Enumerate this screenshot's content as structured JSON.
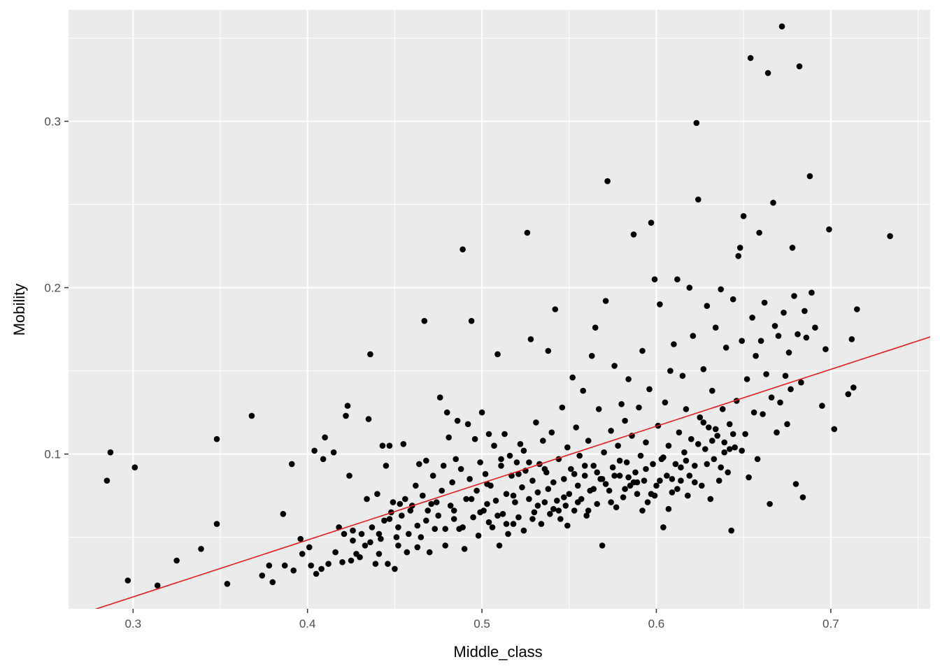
{
  "chart_data": {
    "type": "scatter",
    "xlabel": "Middle_class",
    "ylabel": "Mobility",
    "xlim": [
      0.263,
      0.757
    ],
    "ylim": [
      0.007,
      0.367
    ],
    "x_ticks": [
      0.3,
      0.4,
      0.5,
      0.6,
      0.7
    ],
    "x_tick_labels": [
      "0.3",
      "0.4",
      "0.5",
      "0.6",
      "0.7"
    ],
    "y_ticks": [
      0.1,
      0.2,
      0.3
    ],
    "y_tick_labels": [
      "0.1",
      "0.2",
      "0.3"
    ],
    "grid": true,
    "panel_background": "#EBEBEB",
    "grid_color": "#FFFFFF",
    "point_color": "#000000",
    "fit_line": {
      "color": "#E31A1C",
      "x": [
        0.263,
        0.757
      ],
      "y": [
        0.0015,
        0.1704
      ]
    },
    "points": [
      [
        0.285,
        0.084
      ],
      [
        0.287,
        0.101
      ],
      [
        0.297,
        0.024
      ],
      [
        0.301,
        0.092
      ],
      [
        0.314,
        0.021
      ],
      [
        0.325,
        0.036
      ],
      [
        0.339,
        0.043
      ],
      [
        0.348,
        0.058
      ],
      [
        0.348,
        0.109
      ],
      [
        0.354,
        0.022
      ],
      [
        0.368,
        0.123
      ],
      [
        0.374,
        0.027
      ],
      [
        0.378,
        0.033
      ],
      [
        0.38,
        0.023
      ],
      [
        0.386,
        0.064
      ],
      [
        0.387,
        0.033
      ],
      [
        0.391,
        0.094
      ],
      [
        0.392,
        0.03
      ],
      [
        0.396,
        0.049
      ],
      [
        0.397,
        0.04
      ],
      [
        0.401,
        0.044
      ],
      [
        0.402,
        0.033
      ],
      [
        0.404,
        0.102
      ],
      [
        0.405,
        0.028
      ],
      [
        0.408,
        0.031
      ],
      [
        0.409,
        0.097
      ],
      [
        0.41,
        0.11
      ],
      [
        0.412,
        0.034
      ],
      [
        0.415,
        0.101
      ],
      [
        0.416,
        0.041
      ],
      [
        0.418,
        0.056
      ],
      [
        0.42,
        0.035
      ],
      [
        0.421,
        0.052
      ],
      [
        0.422,
        0.123
      ],
      [
        0.423,
        0.129
      ],
      [
        0.424,
        0.087
      ],
      [
        0.425,
        0.036
      ],
      [
        0.426,
        0.048
      ],
      [
        0.428,
        0.04
      ],
      [
        0.43,
        0.038
      ],
      [
        0.433,
        0.045
      ],
      [
        0.434,
        0.073
      ],
      [
        0.435,
        0.121
      ],
      [
        0.436,
        0.16
      ],
      [
        0.437,
        0.056
      ],
      [
        0.439,
        0.034
      ],
      [
        0.44,
        0.076
      ],
      [
        0.441,
        0.04
      ],
      [
        0.442,
        0.049
      ],
      [
        0.443,
        0.105
      ],
      [
        0.444,
        0.06
      ],
      [
        0.445,
        0.093
      ],
      [
        0.446,
        0.034
      ],
      [
        0.447,
        0.105
      ],
      [
        0.448,
        0.065
      ],
      [
        0.449,
        0.071
      ],
      [
        0.45,
        0.031
      ],
      [
        0.451,
        0.05
      ],
      [
        0.452,
        0.045
      ],
      [
        0.453,
        0.07
      ],
      [
        0.454,
        0.063
      ],
      [
        0.455,
        0.106
      ],
      [
        0.456,
        0.073
      ],
      [
        0.457,
        0.041
      ],
      [
        0.459,
        0.066
      ],
      [
        0.46,
        0.069
      ],
      [
        0.462,
        0.081
      ],
      [
        0.463,
        0.057
      ],
      [
        0.464,
        0.094
      ],
      [
        0.465,
        0.05
      ],
      [
        0.466,
        0.075
      ],
      [
        0.467,
        0.18
      ],
      [
        0.468,
        0.096
      ],
      [
        0.469,
        0.066
      ],
      [
        0.47,
        0.041
      ],
      [
        0.471,
        0.07
      ],
      [
        0.472,
        0.087
      ],
      [
        0.473,
        0.055
      ],
      [
        0.475,
        0.063
      ],
      [
        0.476,
        0.134
      ],
      [
        0.477,
        0.078
      ],
      [
        0.478,
        0.093
      ],
      [
        0.479,
        0.045
      ],
      [
        0.48,
        0.125
      ],
      [
        0.481,
        0.11
      ],
      [
        0.482,
        0.069
      ],
      [
        0.483,
        0.083
      ],
      [
        0.484,
        0.061
      ],
      [
        0.485,
        0.097
      ],
      [
        0.486,
        0.12
      ],
      [
        0.487,
        0.055
      ],
      [
        0.488,
        0.091
      ],
      [
        0.489,
        0.223
      ],
      [
        0.49,
        0.043
      ],
      [
        0.491,
        0.073
      ],
      [
        0.492,
        0.118
      ],
      [
        0.493,
        0.085
      ],
      [
        0.494,
        0.18
      ],
      [
        0.495,
        0.062
      ],
      [
        0.496,
        0.109
      ],
      [
        0.497,
        0.078
      ],
      [
        0.498,
        0.051
      ],
      [
        0.499,
        0.095
      ],
      [
        0.5,
        0.125
      ],
      [
        0.501,
        0.066
      ],
      [
        0.502,
        0.088
      ],
      [
        0.503,
        0.07
      ],
      [
        0.504,
        0.112
      ],
      [
        0.505,
        0.081
      ],
      [
        0.506,
        0.056
      ],
      [
        0.507,
        0.105
      ],
      [
        0.508,
        0.072
      ],
      [
        0.509,
        0.16
      ],
      [
        0.51,
        0.045
      ],
      [
        0.511,
        0.093
      ],
      [
        0.512,
        0.064
      ],
      [
        0.513,
        0.112
      ],
      [
        0.514,
        0.076
      ],
      [
        0.515,
        0.052
      ],
      [
        0.516,
        0.099
      ],
      [
        0.517,
        0.087
      ],
      [
        0.518,
        0.058
      ],
      [
        0.519,
        0.071
      ],
      [
        0.52,
        0.095
      ],
      [
        0.521,
        0.062
      ],
      [
        0.522,
        0.106
      ],
      [
        0.523,
        0.08
      ],
      [
        0.524,
        0.054
      ],
      [
        0.525,
        0.09
      ],
      [
        0.526,
        0.233
      ],
      [
        0.527,
        0.073
      ],
      [
        0.528,
        0.169
      ],
      [
        0.529,
        0.084
      ],
      [
        0.53,
        0.065
      ],
      [
        0.531,
        0.119
      ],
      [
        0.532,
        0.077
      ],
      [
        0.533,
        0.094
      ],
      [
        0.534,
        0.058
      ],
      [
        0.535,
        0.108
      ],
      [
        0.536,
        0.071
      ],
      [
        0.537,
        0.089
      ],
      [
        0.538,
        0.162
      ],
      [
        0.539,
        0.064
      ],
      [
        0.54,
        0.113
      ],
      [
        0.541,
        0.083
      ],
      [
        0.542,
        0.187
      ],
      [
        0.543,
        0.072
      ],
      [
        0.544,
        0.097
      ],
      [
        0.545,
        0.061
      ],
      [
        0.546,
        0.128
      ],
      [
        0.547,
        0.085
      ],
      [
        0.548,
        0.069
      ],
      [
        0.549,
        0.104
      ],
      [
        0.55,
        0.076
      ],
      [
        0.551,
        0.091
      ],
      [
        0.552,
        0.146
      ],
      [
        0.553,
        0.066
      ],
      [
        0.554,
        0.116
      ],
      [
        0.555,
        0.081
      ],
      [
        0.556,
        0.099
      ],
      [
        0.557,
        0.073
      ],
      [
        0.558,
        0.138
      ],
      [
        0.559,
        0.087
      ],
      [
        0.56,
        0.063
      ],
      [
        0.561,
        0.108
      ],
      [
        0.562,
        0.078
      ],
      [
        0.563,
        0.159
      ],
      [
        0.564,
        0.093
      ],
      [
        0.565,
        0.176
      ],
      [
        0.566,
        0.07
      ],
      [
        0.567,
        0.127
      ],
      [
        0.568,
        0.085
      ],
      [
        0.569,
        0.045
      ],
      [
        0.57,
        0.101
      ],
      [
        0.571,
        0.192
      ],
      [
        0.572,
        0.264
      ],
      [
        0.573,
        0.078
      ],
      [
        0.574,
        0.114
      ],
      [
        0.575,
        0.092
      ],
      [
        0.576,
        0.153
      ],
      [
        0.577,
        0.068
      ],
      [
        0.578,
        0.105
      ],
      [
        0.579,
        0.087
      ],
      [
        0.58,
        0.13
      ],
      [
        0.581,
        0.074
      ],
      [
        0.582,
        0.12
      ],
      [
        0.583,
        0.095
      ],
      [
        0.584,
        0.145
      ],
      [
        0.585,
        0.081
      ],
      [
        0.586,
        0.111
      ],
      [
        0.587,
        0.232
      ],
      [
        0.588,
        0.089
      ],
      [
        0.589,
        0.076
      ],
      [
        0.59,
        0.128
      ],
      [
        0.591,
        0.099
      ],
      [
        0.592,
        0.162
      ],
      [
        0.593,
        0.084
      ],
      [
        0.594,
        0.107
      ],
      [
        0.595,
        0.071
      ],
      [
        0.596,
        0.139
      ],
      [
        0.597,
        0.239
      ],
      [
        0.598,
        0.094
      ],
      [
        0.599,
        0.205
      ],
      [
        0.6,
        0.081
      ],
      [
        0.601,
        0.117
      ],
      [
        0.602,
        0.19
      ],
      [
        0.603,
        0.097
      ],
      [
        0.604,
        0.056
      ],
      [
        0.605,
        0.131
      ],
      [
        0.606,
        0.087
      ],
      [
        0.607,
        0.105
      ],
      [
        0.608,
        0.15
      ],
      [
        0.609,
        0.077
      ],
      [
        0.61,
        0.166
      ],
      [
        0.611,
        0.094
      ],
      [
        0.612,
        0.205
      ],
      [
        0.613,
        0.113
      ],
      [
        0.614,
        0.084
      ],
      [
        0.615,
        0.147
      ],
      [
        0.616,
        0.101
      ],
      [
        0.617,
        0.127
      ],
      [
        0.618,
        0.075
      ],
      [
        0.619,
        0.2
      ],
      [
        0.62,
        0.109
      ],
      [
        0.621,
        0.171
      ],
      [
        0.622,
        0.093
      ],
      [
        0.623,
        0.299
      ],
      [
        0.624,
        0.253
      ],
      [
        0.625,
        0.122
      ],
      [
        0.626,
        0.081
      ],
      [
        0.627,
        0.151
      ],
      [
        0.628,
        0.103
      ],
      [
        0.629,
        0.189
      ],
      [
        0.63,
        0.116
      ],
      [
        0.631,
        0.073
      ],
      [
        0.632,
        0.138
      ],
      [
        0.633,
        0.097
      ],
      [
        0.634,
        0.176
      ],
      [
        0.635,
        0.111
      ],
      [
        0.636,
        0.084
      ],
      [
        0.637,
        0.199
      ],
      [
        0.638,
        0.127
      ],
      [
        0.639,
        0.101
      ],
      [
        0.64,
        0.164
      ],
      [
        0.641,
        0.089
      ],
      [
        0.642,
        0.118
      ],
      [
        0.643,
        0.054
      ],
      [
        0.644,
        0.193
      ],
      [
        0.645,
        0.104
      ],
      [
        0.646,
        0.132
      ],
      [
        0.647,
        0.219
      ],
      [
        0.648,
        0.224
      ],
      [
        0.649,
        0.168
      ],
      [
        0.65,
        0.243
      ],
      [
        0.651,
        0.112
      ],
      [
        0.652,
        0.145
      ],
      [
        0.653,
        0.086
      ],
      [
        0.654,
        0.338
      ],
      [
        0.655,
        0.182
      ],
      [
        0.656,
        0.125
      ],
      [
        0.657,
        0.159
      ],
      [
        0.658,
        0.097
      ],
      [
        0.659,
        0.233
      ],
      [
        0.66,
        0.168
      ],
      [
        0.661,
        0.124
      ],
      [
        0.662,
        0.191
      ],
      [
        0.663,
        0.148
      ],
      [
        0.664,
        0.329
      ],
      [
        0.665,
        0.07
      ],
      [
        0.666,
        0.134
      ],
      [
        0.667,
        0.251
      ],
      [
        0.668,
        0.177
      ],
      [
        0.669,
        0.113
      ],
      [
        0.67,
        0.171
      ],
      [
        0.671,
        0.131
      ],
      [
        0.672,
        0.357
      ],
      [
        0.673,
        0.185
      ],
      [
        0.674,
        0.147
      ],
      [
        0.675,
        0.118
      ],
      [
        0.676,
        0.161
      ],
      [
        0.677,
        0.139
      ],
      [
        0.678,
        0.224
      ],
      [
        0.679,
        0.195
      ],
      [
        0.68,
        0.082
      ],
      [
        0.681,
        0.172
      ],
      [
        0.682,
        0.333
      ],
      [
        0.683,
        0.143
      ],
      [
        0.684,
        0.074
      ],
      [
        0.685,
        0.186
      ],
      [
        0.686,
        0.17
      ],
      [
        0.688,
        0.267
      ],
      [
        0.689,
        0.197
      ],
      [
        0.691,
        0.176
      ],
      [
        0.695,
        0.129
      ],
      [
        0.697,
        0.163
      ],
      [
        0.699,
        0.235
      ],
      [
        0.702,
        0.115
      ],
      [
        0.71,
        0.136
      ],
      [
        0.712,
        0.169
      ],
      [
        0.713,
        0.14
      ],
      [
        0.715,
        0.187
      ],
      [
        0.734,
        0.231
      ],
      [
        0.503,
        0.082
      ],
      [
        0.511,
        0.097
      ],
      [
        0.518,
        0.075
      ],
      [
        0.524,
        0.102
      ],
      [
        0.529,
        0.061
      ],
      [
        0.536,
        0.091
      ],
      [
        0.541,
        0.067
      ],
      [
        0.547,
        0.074
      ],
      [
        0.553,
        0.088
      ],
      [
        0.559,
        0.093
      ],
      [
        0.564,
        0.079
      ],
      [
        0.569,
        0.085
      ],
      [
        0.574,
        0.071
      ],
      [
        0.579,
        0.096
      ],
      [
        0.584,
        0.086
      ],
      [
        0.589,
        0.083
      ],
      [
        0.594,
        0.091
      ],
      [
        0.599,
        0.075
      ],
      [
        0.604,
        0.098
      ],
      [
        0.609,
        0.085
      ],
      [
        0.614,
        0.092
      ],
      [
        0.619,
        0.087
      ],
      [
        0.624,
        0.106
      ],
      [
        0.629,
        0.094
      ],
      [
        0.634,
        0.115
      ],
      [
        0.639,
        0.107
      ],
      [
        0.644,
        0.112
      ],
      [
        0.649,
        0.102
      ],
      [
        0.509,
        0.063
      ],
      [
        0.514,
        0.058
      ],
      [
        0.521,
        0.088
      ],
      [
        0.527,
        0.095
      ],
      [
        0.532,
        0.069
      ],
      [
        0.538,
        0.079
      ],
      [
        0.544,
        0.066
      ],
      [
        0.549,
        0.057
      ],
      [
        0.555,
        0.071
      ],
      [
        0.561,
        0.066
      ],
      [
        0.566,
        0.089
      ],
      [
        0.571,
        0.082
      ],
      [
        0.576,
        0.087
      ],
      [
        0.582,
        0.079
      ],
      [
        0.587,
        0.083
      ],
      [
        0.592,
        0.066
      ],
      [
        0.597,
        0.076
      ],
      [
        0.602,
        0.084
      ],
      [
        0.607,
        0.067
      ],
      [
        0.612,
        0.079
      ],
      [
        0.617,
        0.096
      ],
      [
        0.622,
        0.083
      ],
      [
        0.627,
        0.119
      ],
      [
        0.632,
        0.108
      ],
      [
        0.637,
        0.092
      ],
      [
        0.642,
        0.103
      ],
      [
        0.468,
        0.06
      ],
      [
        0.474,
        0.071
      ],
      [
        0.479,
        0.055
      ],
      [
        0.484,
        0.066
      ],
      [
        0.489,
        0.056
      ],
      [
        0.494,
        0.073
      ],
      [
        0.499,
        0.065
      ],
      [
        0.504,
        0.059
      ],
      [
        0.458,
        0.052
      ],
      [
        0.463,
        0.044
      ],
      [
        0.452,
        0.056
      ],
      [
        0.447,
        0.061
      ],
      [
        0.441,
        0.052
      ],
      [
        0.436,
        0.047
      ],
      [
        0.431,
        0.052
      ],
      [
        0.426,
        0.054
      ]
    ]
  }
}
